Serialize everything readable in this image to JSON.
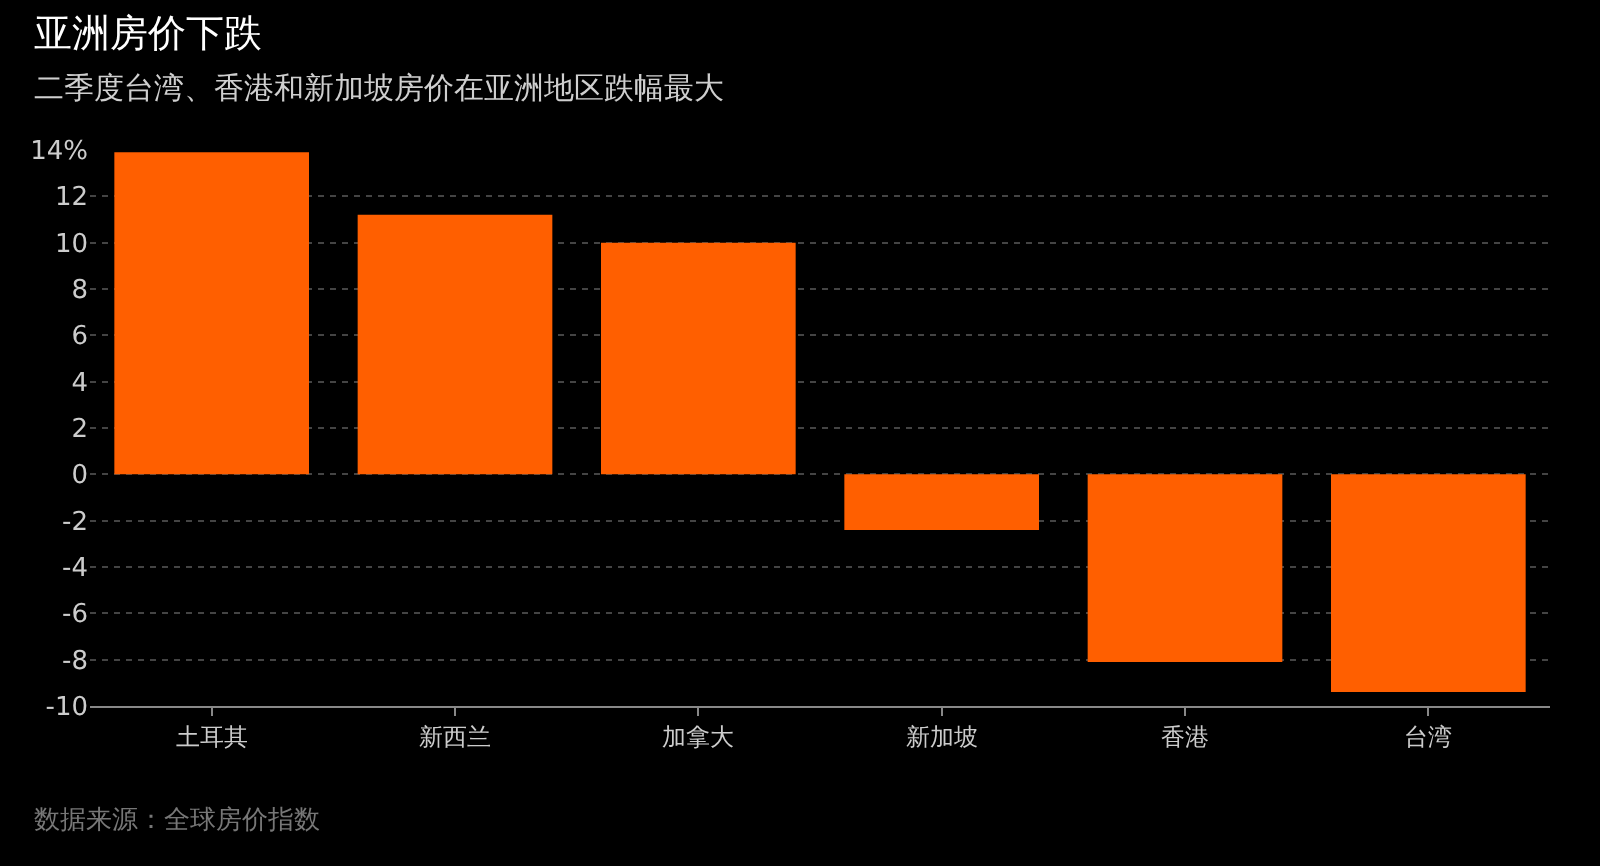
{
  "chart_data": {
    "type": "bar",
    "title": "亚洲房价下跌",
    "subtitle": "二季度台湾、香港和新加坡房价在亚洲地区跌幅最大",
    "categories": [
      "土耳其",
      "新西兰",
      "加拿大",
      "新加坡",
      "香港",
      "台湾"
    ],
    "values": [
      13.9,
      11.2,
      10.0,
      -2.4,
      -8.1,
      -9.4
    ],
    "color": "#ff5f00",
    "ylim": [
      -10,
      14
    ],
    "yticks": [
      -10,
      -8,
      -6,
      -4,
      -2,
      0,
      2,
      4,
      6,
      8,
      10,
      12,
      {
        "value": 14,
        "label": "14%"
      }
    ],
    "grid": "y",
    "annotations": [
      "数据来源：全球房价指数"
    ]
  }
}
